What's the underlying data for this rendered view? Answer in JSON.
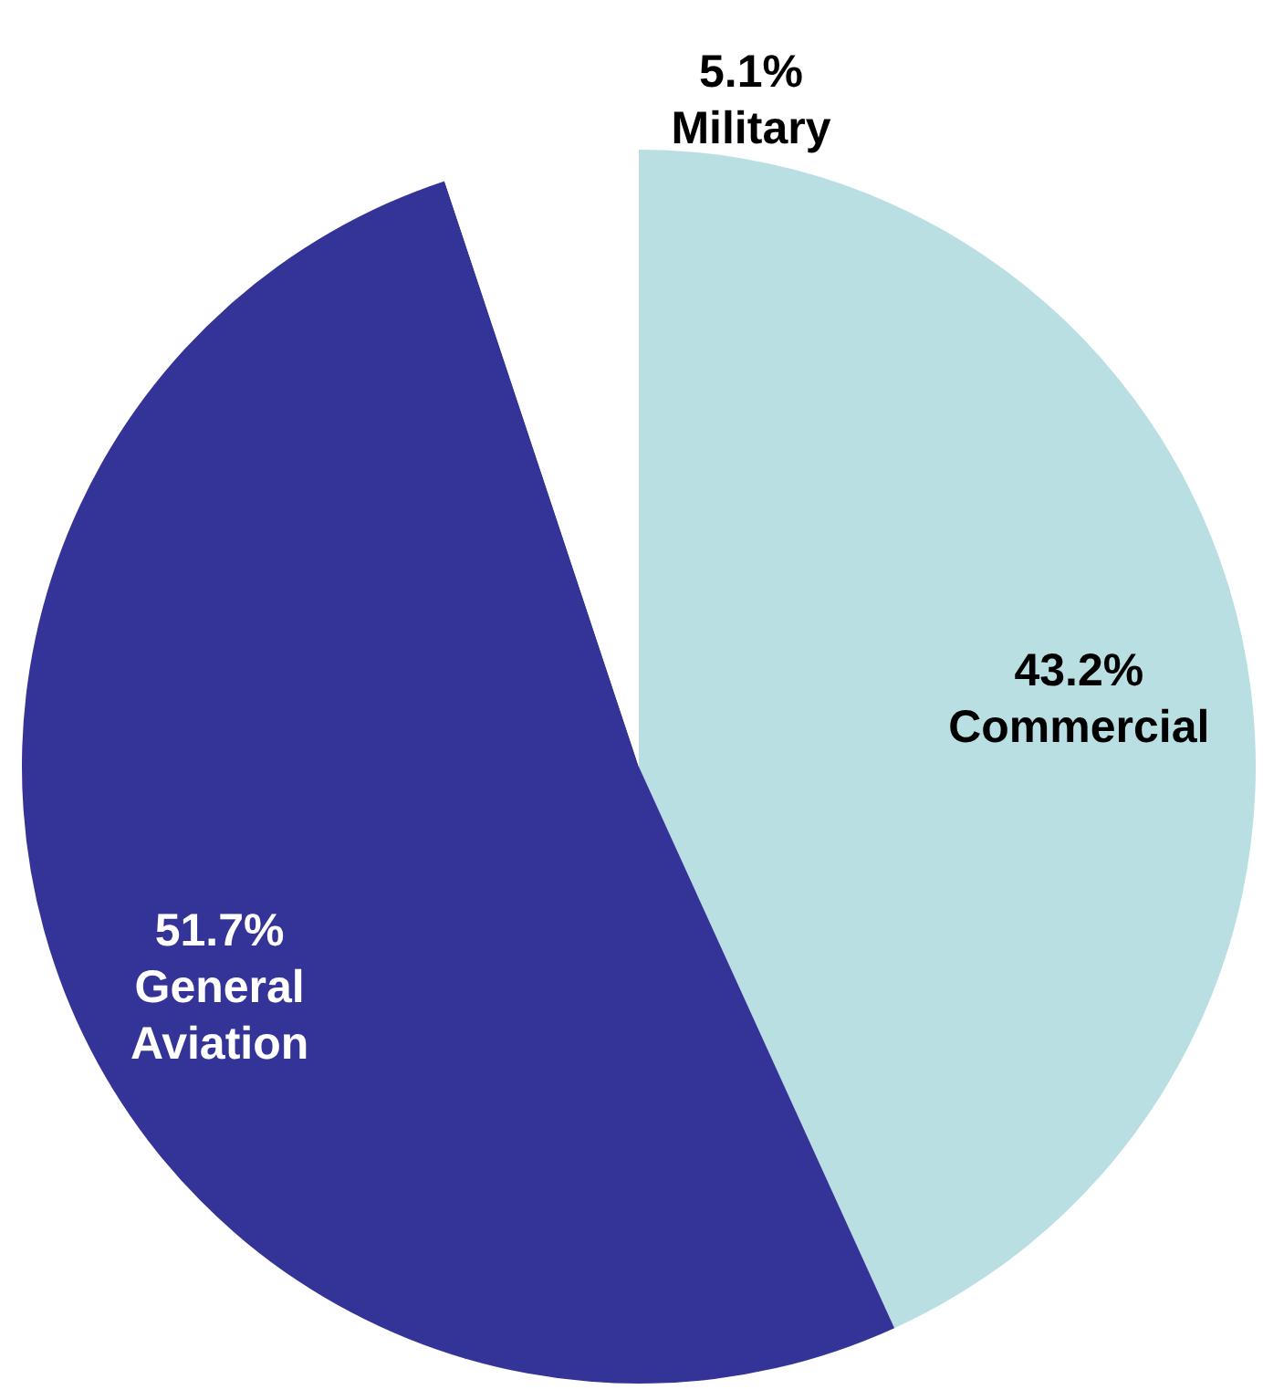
{
  "chart_data": {
    "type": "pie",
    "categories": [
      "Commercial",
      "General Aviation",
      "Military"
    ],
    "values": [
      43.2,
      51.7,
      5.1
    ],
    "value_labels": [
      "43.2%",
      "51.7%",
      "5.1%"
    ],
    "colors": [
      "#b9dfe3",
      "#343397",
      "#ffffff"
    ]
  }
}
